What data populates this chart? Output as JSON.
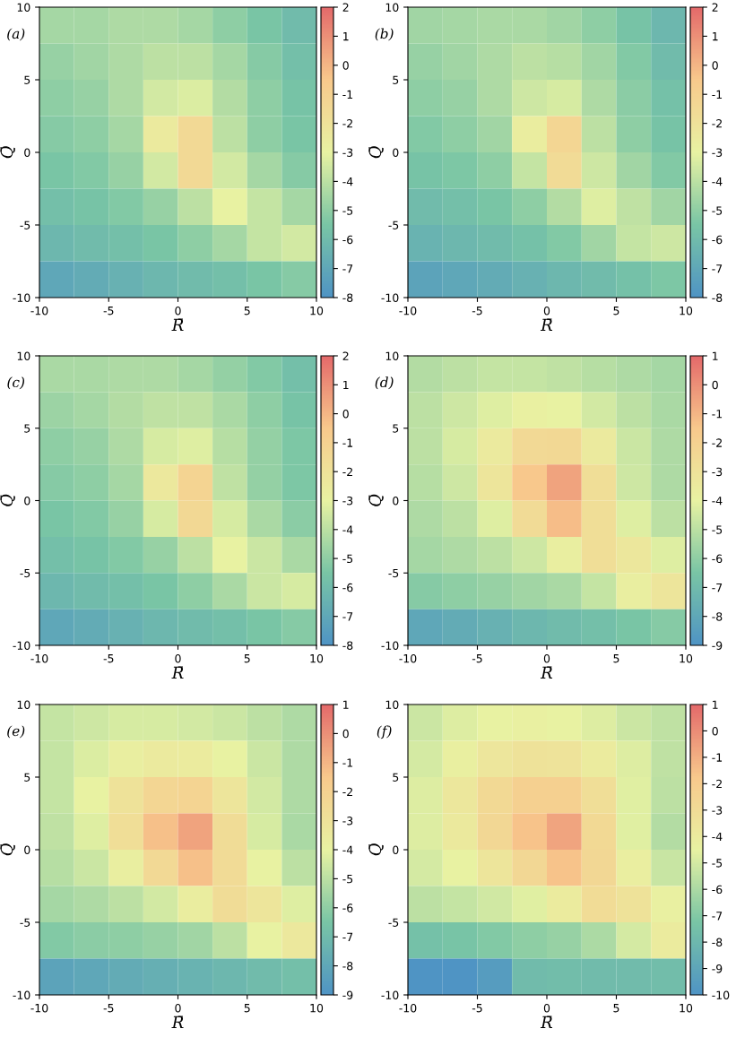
{
  "chart_data": [
    {
      "type": "heatmap",
      "annotations": [
        "(a)"
      ],
      "xlabel": "R̄",
      "ylabel": "Q̄",
      "xlim": [
        -10,
        10
      ],
      "xticks": [
        -10,
        -5,
        0,
        5,
        10
      ],
      "ylim": [
        -10,
        10
      ],
      "yticks": [
        -10,
        -5,
        0,
        5,
        10
      ],
      "clim": [
        -8,
        2
      ],
      "cticks": [
        -8,
        -7,
        -6,
        -5,
        -4,
        -3,
        -2,
        -1,
        0,
        1,
        2
      ],
      "cells": [
        [
          -4.5,
          -4.5,
          -4.3,
          -4.3,
          -4.5,
          -5,
          -5.5,
          -6
        ],
        [
          -4.8,
          -4.6,
          -4.3,
          -4,
          -4,
          -4.5,
          -5.2,
          -5.8
        ],
        [
          -5,
          -4.8,
          -4.3,
          -3.5,
          -3.3,
          -4.2,
          -5,
          -5.6
        ],
        [
          -5.2,
          -5,
          -4.5,
          -2.5,
          -1.5,
          -4,
          -5,
          -5.5
        ],
        [
          -5.5,
          -5.3,
          -4.8,
          -3.5,
          -1.5,
          -3.5,
          -4.5,
          -5.2
        ],
        [
          -5.8,
          -5.6,
          -5.3,
          -4.8,
          -4,
          -3,
          -3.8,
          -4.5
        ],
        [
          -6.2,
          -6,
          -5.8,
          -5.5,
          -5,
          -4.5,
          -3.8,
          -3.5
        ],
        [
          -7,
          -6.8,
          -6.5,
          -6.2,
          -6,
          -5.8,
          -5.5,
          -5.2
        ]
      ]
    },
    {
      "type": "heatmap",
      "annotations": [
        "(b)"
      ],
      "xlabel": "R̄",
      "ylabel": "Q̄",
      "xlim": [
        -10,
        10
      ],
      "xticks": [
        -10,
        -5,
        0,
        5,
        10
      ],
      "ylim": [
        -10,
        10
      ],
      "yticks": [
        -10,
        -5,
        0,
        5,
        10
      ],
      "clim": [
        -8,
        2
      ],
      "cticks": [
        -8,
        -7,
        -6,
        -5,
        -4,
        -3,
        -2,
        -1,
        0,
        1,
        2
      ],
      "cells": [
        [
          -4.6,
          -4.5,
          -4.4,
          -4.4,
          -4.6,
          -5,
          -5.6,
          -6.2
        ],
        [
          -4.8,
          -4.6,
          -4.3,
          -4,
          -4.1,
          -4.6,
          -5.3,
          -6
        ],
        [
          -5,
          -4.8,
          -4.3,
          -3.6,
          -3.4,
          -4.3,
          -5.1,
          -5.7
        ],
        [
          -5.3,
          -5,
          -4.6,
          -2.7,
          -1.3,
          -4,
          -5,
          -5.6
        ],
        [
          -5.6,
          -5.4,
          -5,
          -3.8,
          -1.6,
          -3.6,
          -4.6,
          -5.3
        ],
        [
          -6,
          -5.8,
          -5.5,
          -5,
          -4.2,
          -3.2,
          -3.9,
          -4.6
        ],
        [
          -6.4,
          -6.2,
          -6,
          -5.7,
          -5.3,
          -4.6,
          -3.8,
          -3.6
        ],
        [
          -7.2,
          -7,
          -6.8,
          -6.5,
          -6.2,
          -6,
          -5.7,
          -5.4
        ]
      ]
    },
    {
      "type": "heatmap",
      "annotations": [
        "(c)"
      ],
      "xlabel": "R̄",
      "ylabel": "Q̄",
      "xlim": [
        -10,
        10
      ],
      "xticks": [
        -10,
        -5,
        0,
        5,
        10
      ],
      "ylim": [
        -10,
        10
      ],
      "yticks": [
        -10,
        -5,
        0,
        5,
        10
      ],
      "clim": [
        -8,
        2
      ],
      "cticks": [
        -8,
        -7,
        -6,
        -5,
        -4,
        -3,
        -2,
        -1,
        0,
        1,
        2
      ],
      "cells": [
        [
          -4.4,
          -4.4,
          -4.3,
          -4.3,
          -4.5,
          -4.9,
          -5.3,
          -5.8
        ],
        [
          -4.7,
          -4.5,
          -4.2,
          -3.9,
          -3.9,
          -4.4,
          -5,
          -5.6
        ],
        [
          -5,
          -4.8,
          -4.3,
          -3.4,
          -3.2,
          -4.1,
          -4.9,
          -5.4
        ],
        [
          -5.2,
          -5,
          -4.5,
          -2.4,
          -1.2,
          -3.9,
          -4.9,
          -5.4
        ],
        [
          -5.5,
          -5.3,
          -4.8,
          -3.4,
          -1.4,
          -3.4,
          -4.4,
          -5.1
        ],
        [
          -5.8,
          -5.6,
          -5.3,
          -4.8,
          -4,
          -3,
          -3.7,
          -4.4
        ],
        [
          -6.2,
          -6,
          -5.8,
          -5.5,
          -5,
          -4.4,
          -3.7,
          -3.4
        ],
        [
          -7,
          -6.8,
          -6.5,
          -6.2,
          -6,
          -5.8,
          -5.5,
          -5.2
        ]
      ]
    },
    {
      "type": "heatmap",
      "annotations": [
        "(d)"
      ],
      "xlabel": "R̄",
      "ylabel": "Q̄",
      "xlim": [
        -10,
        10
      ],
      "xticks": [
        -10,
        -5,
        0,
        5,
        10
      ],
      "ylim": [
        -10,
        10
      ],
      "yticks": [
        -10,
        -5,
        0,
        5,
        10
      ],
      "clim": [
        -9,
        1
      ],
      "cticks": [
        -9,
        -8,
        -7,
        -6,
        -5,
        -4,
        -3,
        -2,
        -1,
        0,
        1
      ],
      "cells": [
        [
          -5.2,
          -5,
          -4.8,
          -4.8,
          -4.9,
          -5.1,
          -5.3,
          -5.5
        ],
        [
          -5,
          -4.6,
          -4.2,
          -3.9,
          -4,
          -4.5,
          -5,
          -5.4
        ],
        [
          -5,
          -4.4,
          -3.5,
          -2.5,
          -2.4,
          -3.5,
          -4.7,
          -5.3
        ],
        [
          -5.1,
          -4.6,
          -3.2,
          -1.5,
          -0.5,
          -2.8,
          -4.6,
          -5.3
        ],
        [
          -5.3,
          -5,
          -4.2,
          -2.6,
          -1.2,
          -2.8,
          -4.2,
          -5
        ],
        [
          -5.5,
          -5.3,
          -5,
          -4.6,
          -3.8,
          -2.8,
          -3.3,
          -4.2
        ],
        [
          -6.2,
          -6,
          -5.8,
          -5.6,
          -5.4,
          -4.8,
          -3.8,
          -3.2
        ],
        [
          -8,
          -7.8,
          -7.5,
          -7.2,
          -7,
          -6.8,
          -6.5,
          -6.2
        ]
      ]
    },
    {
      "type": "heatmap",
      "annotations": [
        "(e)"
      ],
      "xlabel": "R̄",
      "ylabel": "Q̄",
      "xlim": [
        -10,
        10
      ],
      "xticks": [
        -10,
        -5,
        0,
        5,
        10
      ],
      "ylim": [
        -10,
        10
      ],
      "yticks": [
        -10,
        -5,
        0,
        5,
        10
      ],
      "clim": [
        -9,
        1
      ],
      "cticks": [
        -9,
        -8,
        -7,
        -6,
        -5,
        -4,
        -3,
        -2,
        -1,
        0,
        1
      ],
      "cells": [
        [
          -4.8,
          -4.6,
          -4.4,
          -4.4,
          -4.5,
          -4.7,
          -5,
          -5.3
        ],
        [
          -4.8,
          -4.3,
          -3.8,
          -3.5,
          -3.6,
          -4,
          -4.7,
          -5.3
        ],
        [
          -4.8,
          -4,
          -3,
          -2.3,
          -2.2,
          -3.2,
          -4.5,
          -5.3
        ],
        [
          -4.9,
          -4.2,
          -2.8,
          -1.3,
          -0.5,
          -2.7,
          -4.4,
          -5.4
        ],
        [
          -5.1,
          -4.7,
          -3.8,
          -2.5,
          -1.3,
          -2.6,
          -4,
          -5
        ],
        [
          -5.5,
          -5.3,
          -5,
          -4.5,
          -3.7,
          -2.7,
          -3.2,
          -4.2
        ],
        [
          -6.3,
          -6.1,
          -6,
          -5.8,
          -5.6,
          -5,
          -4,
          -3.4
        ],
        [
          -8.2,
          -8,
          -7.8,
          -7.6,
          -7.4,
          -7.2,
          -7,
          -6.8
        ]
      ]
    },
    {
      "type": "heatmap",
      "annotations": [
        "(f)"
      ],
      "xlabel": "R̄",
      "ylabel": "Q̄",
      "xlim": [
        -10,
        10
      ],
      "xticks": [
        -10,
        -5,
        0,
        5,
        10
      ],
      "ylim": [
        -10,
        10
      ],
      "yticks": [
        -10,
        -5,
        0,
        5,
        10
      ],
      "clim": [
        -10,
        1
      ],
      "cticks": [
        -10,
        -9,
        -8,
        -7,
        -6,
        -5,
        -4,
        -3,
        -2,
        -1,
        0,
        1
      ],
      "cells": [
        [
          -5.2,
          -4.8,
          -4.5,
          -4.4,
          -4.5,
          -4.8,
          -5.2,
          -5.5
        ],
        [
          -5,
          -4.3,
          -3.7,
          -3.4,
          -3.5,
          -4,
          -4.8,
          -5.5
        ],
        [
          -4.8,
          -3.8,
          -2.8,
          -2.2,
          -2.2,
          -3.2,
          -4.7,
          -5.6
        ],
        [
          -4.8,
          -3.9,
          -2.7,
          -1.6,
          -0.7,
          -2.8,
          -4.7,
          -5.8
        ],
        [
          -5,
          -4.5,
          -3.6,
          -2.7,
          -1.6,
          -2.7,
          -4.2,
          -5.3
        ],
        [
          -5.6,
          -5.4,
          -5.1,
          -4.7,
          -4,
          -3,
          -3.4,
          -4.4
        ],
        [
          -7.5,
          -7.3,
          -7,
          -6.7,
          -6.5,
          -6,
          -5,
          -4
        ],
        [
          -10,
          -10,
          -9.5,
          -7.8,
          -7.7,
          -7.8,
          -7.8,
          -7.7
        ]
      ]
    }
  ]
}
